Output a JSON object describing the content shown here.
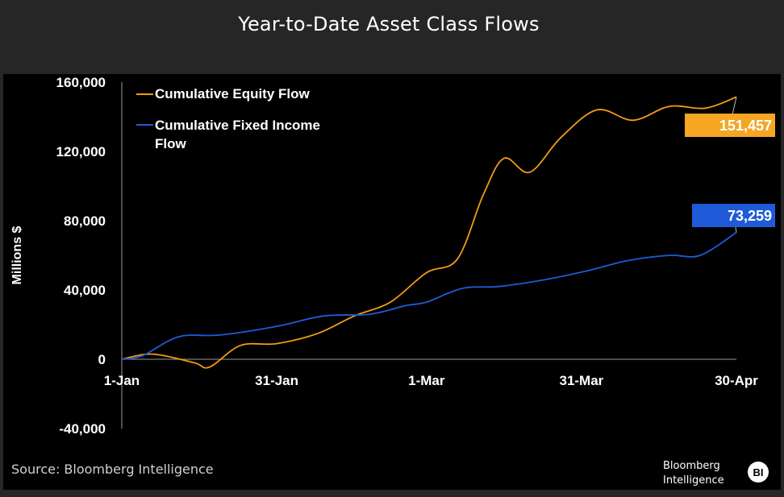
{
  "title": "Year-to-Date Asset Class Flows",
  "source": "Source: Bloomberg Intelligence",
  "brand": {
    "line1": "Bloomberg",
    "line2": "Intelligence",
    "badge": "BI"
  },
  "colors": {
    "equity": "#f39c12",
    "fixed_income": "#1f5bd8",
    "equity_label_bg": "#f5a623",
    "fixed_income_label_bg": "#1f5bd8",
    "panel": "#000000",
    "frame": "#262626"
  },
  "chart_data": {
    "type": "line",
    "title": "Year-to-Date Asset Class Flows",
    "xlabel": "",
    "ylabel": "Millions $",
    "x_ticks": [
      "1-Jan",
      "31-Jan",
      "1-Mar",
      "31-Mar",
      "30-Apr"
    ],
    "x_tick_days": [
      0,
      30,
      59,
      89,
      119
    ],
    "y_ticks": [
      "160,000",
      "120,000",
      "80,000",
      "40,000",
      "0",
      "-40,000"
    ],
    "ylim": [
      -40000,
      160000
    ],
    "xlim": [
      "1-Jan",
      "30-Apr"
    ],
    "grid": false,
    "legend_position": "top-left",
    "series": [
      {
        "name": "Cumulative Equity Flow",
        "end_label": "151,457",
        "points": [
          [
            "1-Jan",
            0
          ],
          [
            "7-Jan",
            3000
          ],
          [
            "15-Jan",
            -2000
          ],
          [
            "18-Jan",
            -4500
          ],
          [
            "24-Jan",
            8000
          ],
          [
            "31-Jan",
            9000
          ],
          [
            "8-Feb",
            15000
          ],
          [
            "15-Feb",
            25000
          ],
          [
            "22-Feb",
            33000
          ],
          [
            "1-Mar",
            50000
          ],
          [
            "7-Mar",
            58000
          ],
          [
            "12-Mar",
            95000
          ],
          [
            "16-Mar",
            116000
          ],
          [
            "21-Mar",
            108000
          ],
          [
            "27-Mar",
            128000
          ],
          [
            "3-Apr",
            144000
          ],
          [
            "10-Apr",
            138000
          ],
          [
            "17-Apr",
            146000
          ],
          [
            "24-Apr",
            145000
          ],
          [
            "30-Apr",
            151457
          ]
        ]
      },
      {
        "name": "Cumulative Fixed Income Flow",
        "end_label": "73,259",
        "points": [
          [
            "1-Jan",
            0
          ],
          [
            "5-Jan",
            2000
          ],
          [
            "12-Jan",
            13000
          ],
          [
            "20-Jan",
            14000
          ],
          [
            "31-Jan",
            19000
          ],
          [
            "9-Feb",
            25000
          ],
          [
            "18-Feb",
            26000
          ],
          [
            "25-Feb",
            31000
          ],
          [
            "1-Mar",
            33000
          ],
          [
            "8-Mar",
            41000
          ],
          [
            "15-Mar",
            42000
          ],
          [
            "24-Mar",
            46000
          ],
          [
            "1-Apr",
            51000
          ],
          [
            "9-Apr",
            57000
          ],
          [
            "17-Apr",
            60000
          ],
          [
            "23-Apr",
            60000
          ],
          [
            "30-Apr",
            73259
          ]
        ]
      }
    ]
  }
}
